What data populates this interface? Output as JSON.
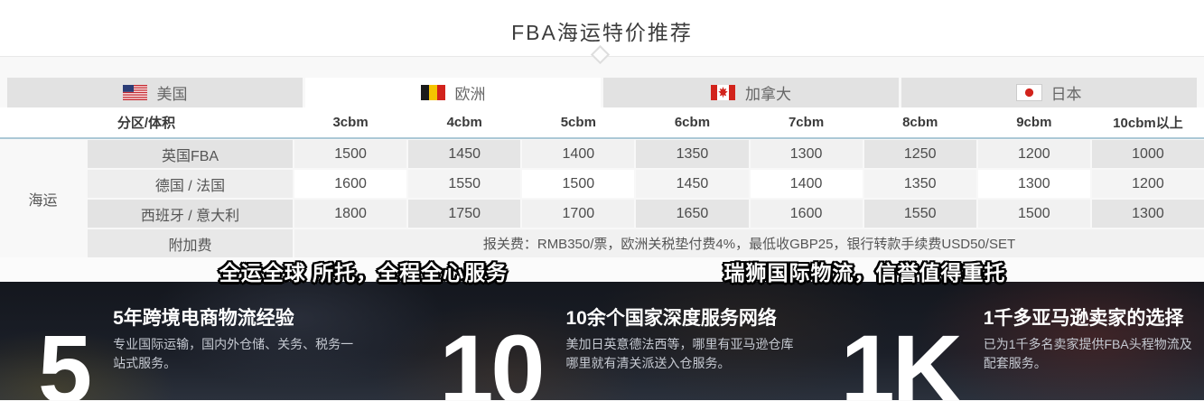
{
  "header": {
    "title": "FBA海运特价推荐"
  },
  "tabs": [
    {
      "label": "美国",
      "flag_icon": "usa-flag-icon",
      "active": false
    },
    {
      "label": "欧洲",
      "flag_icon": "belgium-flag-icon",
      "active": true
    },
    {
      "label": "加拿大",
      "flag_icon": "canada-flag-icon",
      "active": false
    },
    {
      "label": "日本",
      "flag_icon": "japan-flag-icon",
      "active": false
    }
  ],
  "price_table": {
    "corner_label": "分区/体积",
    "row_group_label": "海运",
    "columns": [
      "3cbm",
      "4cbm",
      "5cbm",
      "6cbm",
      "7cbm",
      "8cbm",
      "9cbm",
      "10cbm以上"
    ],
    "rows": [
      {
        "label": "英国FBA",
        "values": [
          "1500",
          "1450",
          "1400",
          "1350",
          "1300",
          "1250",
          "1200",
          "1000"
        ]
      },
      {
        "label": "德国 / 法国",
        "values": [
          "1600",
          "1550",
          "1500",
          "1450",
          "1400",
          "1350",
          "1300",
          "1200"
        ]
      },
      {
        "label": "西班牙 / 意大利",
        "values": [
          "1800",
          "1750",
          "1700",
          "1650",
          "1600",
          "1550",
          "1500",
          "1300"
        ]
      }
    ],
    "surcharge": {
      "label": "附加费",
      "text": "报关费：RMB350/票，欧洲关税垫付费4%，最低收GBP25，银行转款手续费USD50/SET"
    }
  },
  "slogans": [
    "全运全球 所托，全程全心服务",
    "瑞狮国际物流，信誉值得重托"
  ],
  "stats": [
    {
      "number": "5",
      "heading": "5年跨境电商物流经验",
      "description": "专业国际运输，国内外仓储、关务、税务一站式服务。"
    },
    {
      "number": "10",
      "heading": "10余个国家深度服务网络",
      "description": "美加日英意德法西等，哪里有亚马逊仓库哪里就有清关派送入仓服务。"
    },
    {
      "number": "1K",
      "heading": "1千多亚马逊卖家的选择",
      "description": "已为1千多名卖家提供FBA头程物流及配套服务。"
    }
  ],
  "colors": {
    "accent_header_line": "#abc8d6",
    "tab_inactive_bg": "#e2e2e2",
    "dark_banner_bg": "#171a21"
  }
}
